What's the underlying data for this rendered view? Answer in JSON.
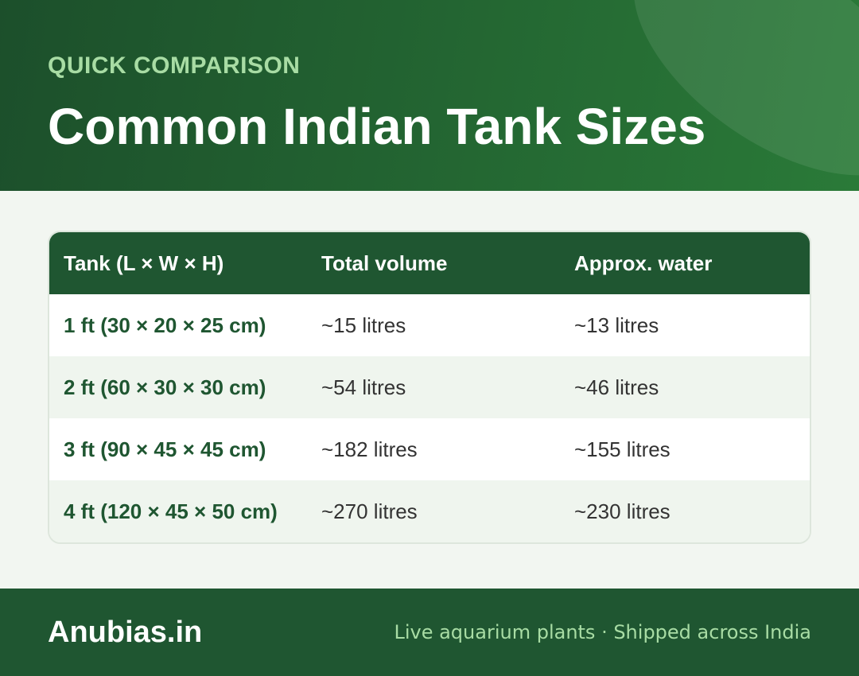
{
  "header": {
    "eyebrow": "QUICK COMPARISON",
    "title": "Common Indian Tank Sizes"
  },
  "table": {
    "columns": [
      "Tank (L × W × H)",
      "Total volume",
      "Approx. water"
    ],
    "rows": [
      [
        "1 ft (30 × 20 × 25 cm)",
        "~15 litres",
        "~13 litres"
      ],
      [
        "2 ft (60 × 30 × 30 cm)",
        "~54 litres",
        "~46 litres"
      ],
      [
        "3 ft (90 × 45 × 45 cm)",
        "~182 litres",
        "~155 litres"
      ],
      [
        "4 ft (120 × 45 × 50 cm)",
        "~270 litres",
        "~230 litres"
      ]
    ]
  },
  "footer": {
    "brand": "Anubias.in",
    "tagline": "Live aquarium plants · Shipped across India"
  }
}
